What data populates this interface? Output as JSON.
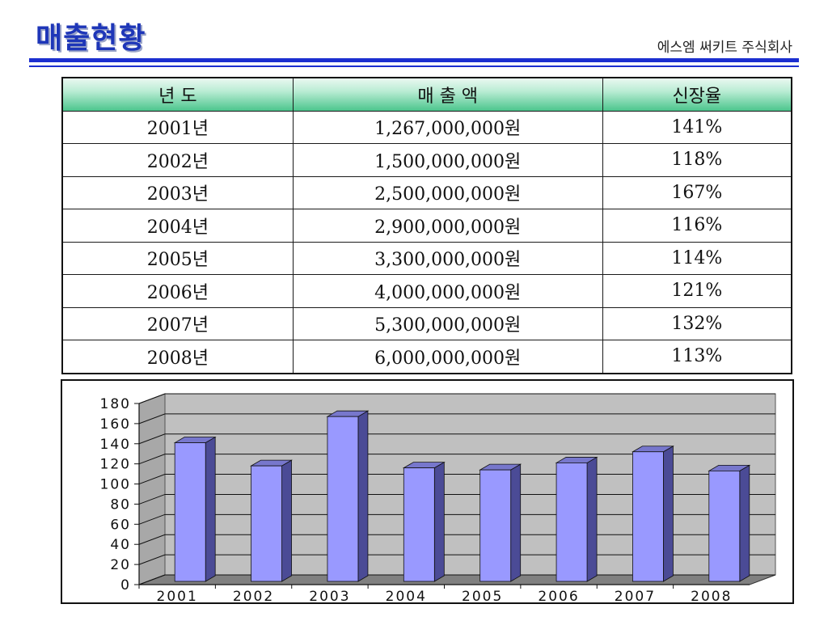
{
  "header": {
    "title": "매출현황",
    "company": "에스엠 써키트 주식회사"
  },
  "table": {
    "headers": [
      "년 도",
      "매 출 액",
      "신장율"
    ],
    "rows": [
      [
        "2001년",
        "1,267,000,000원",
        "141%"
      ],
      [
        "2002년",
        "1,500,000,000원",
        "118%"
      ],
      [
        "2003년",
        "2,500,000,000원",
        "167%"
      ],
      [
        "2004년",
        "2,900,000,000원",
        "116%"
      ],
      [
        "2005년",
        "3,300,000,000원",
        "114%"
      ],
      [
        "2006년",
        "4,000,000,000원",
        "121%"
      ],
      [
        "2007년",
        "5,300,000,000원",
        "132%"
      ],
      [
        "2008년",
        "6,000,000,000원",
        "113%"
      ]
    ]
  },
  "chart_data": {
    "type": "bar",
    "categories": [
      "2001",
      "2002",
      "2003",
      "2004",
      "2005",
      "2006",
      "2007",
      "2008"
    ],
    "values": [
      141,
      118,
      167,
      116,
      114,
      121,
      132,
      113
    ],
    "yticks": [
      "0",
      "20",
      "40",
      "60",
      "80",
      "100",
      "120",
      "140",
      "160",
      "180"
    ],
    "ylim": [
      0,
      180
    ],
    "title": "",
    "xlabel": "",
    "ylabel": "",
    "grid": true,
    "style": "3d",
    "colors": {
      "bar_front": "#9999ff",
      "bar_side": "#4b4b96",
      "bar_top": "#7777cc",
      "wall": "#c0c0c0",
      "floor": "#808080"
    }
  }
}
